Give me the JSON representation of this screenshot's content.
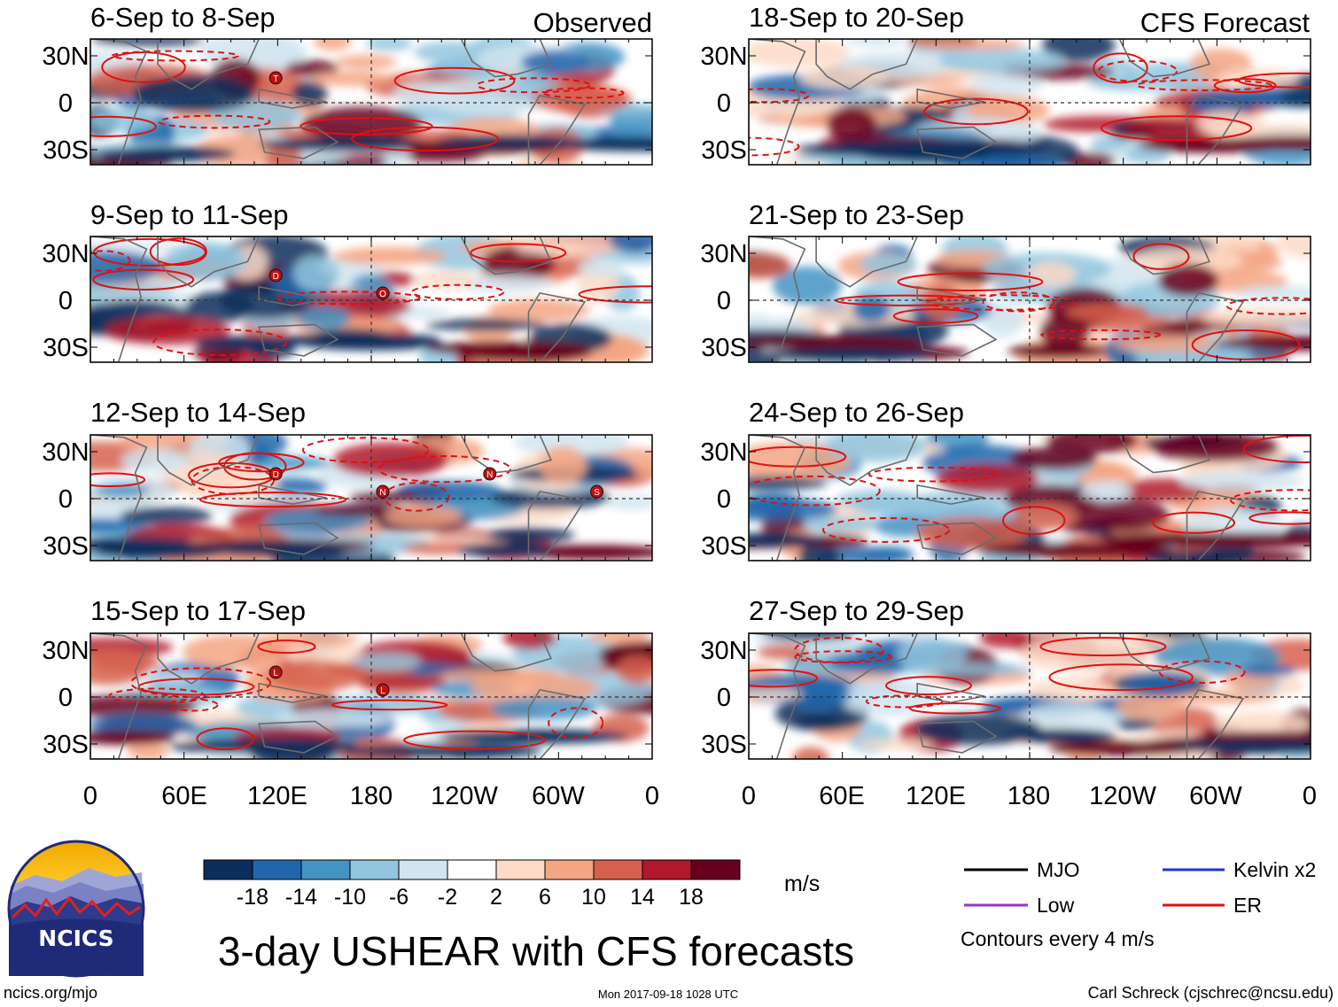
{
  "column_headers": {
    "observed": "Observed",
    "forecast": "CFS Forecast"
  },
  "panels": [
    {
      "label": "6-Sep to 8-Sep",
      "kind": "observed",
      "storms": [
        "T"
      ]
    },
    {
      "label": "9-Sep to 11-Sep",
      "kind": "observed",
      "storms": [
        "D",
        "O"
      ]
    },
    {
      "label": "12-Sep to 14-Sep",
      "kind": "observed",
      "storms": [
        "D",
        "N",
        "N",
        "S"
      ]
    },
    {
      "label": "15-Sep to 17-Sep",
      "kind": "observed",
      "storms": [
        "L",
        "L"
      ]
    },
    {
      "label": "18-Sep to 20-Sep",
      "kind": "forecast",
      "storms": []
    },
    {
      "label": "21-Sep to 23-Sep",
      "kind": "forecast",
      "storms": []
    },
    {
      "label": "24-Sep to 26-Sep",
      "kind": "forecast",
      "storms": []
    },
    {
      "label": "27-Sep to 29-Sep",
      "kind": "forecast",
      "storms": []
    }
  ],
  "lat_labels": [
    "30N",
    "0",
    "30S"
  ],
  "lon_labels": [
    "0",
    "60E",
    "120E",
    "180",
    "120W",
    "60W",
    "0"
  ],
  "colorbar": {
    "colors": [
      "#0a2f5c",
      "#2166ac",
      "#4393c3",
      "#92c5de",
      "#d1e5f0",
      "#ffffff",
      "#fddbc7",
      "#f4a582",
      "#d6604d",
      "#b2182b",
      "#67001f"
    ],
    "labels": [
      "-18",
      "-14",
      "-10",
      "-6",
      "-2",
      "2",
      "6",
      "10",
      "14",
      "18"
    ],
    "units": "m/s"
  },
  "legend": {
    "items": [
      {
        "label": "MJO",
        "color": "#000000"
      },
      {
        "label": "Kelvin x2",
        "color": "#2233cc"
      },
      {
        "label": "Low",
        "color": "#9933cc"
      },
      {
        "label": "ER",
        "color": "#e01010"
      }
    ],
    "note": "Contours every 4 m/s"
  },
  "main_title": "3-day USHEAR with CFS forecasts",
  "logo_text": "NCICS",
  "footer": {
    "left": "ncics.org/mjo",
    "center": "Mon 2017-09-18 1028 UTC",
    "right": "Carl Schreck (cjschrec@ncsu.edu)"
  }
}
